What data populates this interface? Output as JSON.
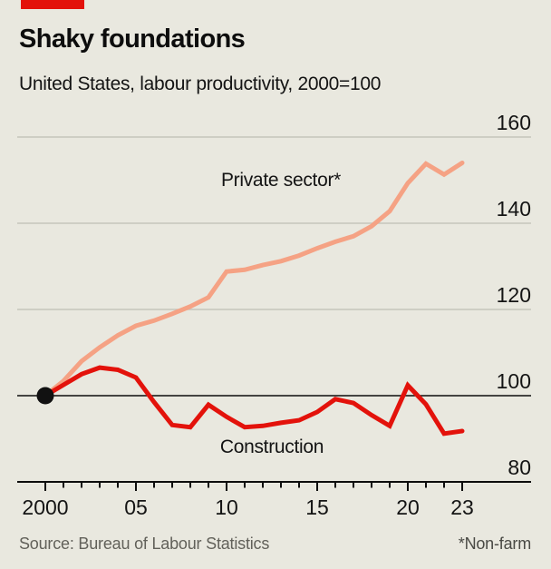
{
  "header": {
    "title": "Shaky foundations",
    "subtitle": "United States, labour productivity, 2000=100"
  },
  "footer": {
    "source": "Source: Bureau of Labour Statistics",
    "footnote": "*Non-farm"
  },
  "colors": {
    "background": "#e9e8df",
    "accent_red": "#e3120b",
    "private_sector_line": "#f5a284",
    "construction_line": "#e3120b",
    "gridline": "#c6c5bc",
    "baseline": "#0d0d0d",
    "axis": "#0d0d0d",
    "text": "#141414",
    "muted_text": "#62615a",
    "start_dot": "#111111"
  },
  "chart_data": {
    "type": "line",
    "title": "Shaky foundations",
    "subtitle": "United States, labour productivity, 2000=100",
    "xlabel": "",
    "ylabel": "",
    "ylim": [
      80,
      160
    ],
    "yticks": [
      80,
      100,
      120,
      140,
      160
    ],
    "baseline_value": 100,
    "grid": "horizontal",
    "legend_position": "inline-labels",
    "x": [
      2000,
      2001,
      2002,
      2003,
      2004,
      2005,
      2006,
      2007,
      2008,
      2009,
      2010,
      2011,
      2012,
      2013,
      2014,
      2015,
      2016,
      2017,
      2018,
      2019,
      2020,
      2021,
      2022,
      2023
    ],
    "xticks": [
      {
        "year": 2000,
        "label": "2000"
      },
      {
        "year": 2005,
        "label": "05"
      },
      {
        "year": 2010,
        "label": "10"
      },
      {
        "year": 2015,
        "label": "15"
      },
      {
        "year": 2020,
        "label": "20"
      },
      {
        "year": 2023,
        "label": "23"
      }
    ],
    "series": [
      {
        "id": "private-sector",
        "name": "Private sector*",
        "color": "#f5a284",
        "values": [
          100,
          103.4,
          108.0,
          111.2,
          114.0,
          116.2,
          117.4,
          119.0,
          120.7,
          122.8,
          128.8,
          129.2,
          130.3,
          131.2,
          132.5,
          134.2,
          135.7,
          137.0,
          139.3,
          142.8,
          149.3,
          153.8,
          151.3,
          154.0
        ]
      },
      {
        "id": "construction",
        "name": "Construction",
        "color": "#e3120b",
        "values": [
          100,
          102.5,
          105.0,
          106.5,
          106.0,
          104.2,
          98.5,
          93.2,
          92.7,
          97.9,
          95.1,
          92.7,
          93.0,
          93.7,
          94.3,
          96.2,
          99.2,
          98.3,
          95.5,
          93.0,
          102.4,
          98.0,
          91.2,
          91.8
        ]
      }
    ],
    "series_labels": [
      {
        "series_id": "private-sector",
        "text": "Private sector*"
      },
      {
        "series_id": "construction",
        "text": "Construction"
      }
    ],
    "start_marker": {
      "year": 2000,
      "value": 100
    }
  }
}
